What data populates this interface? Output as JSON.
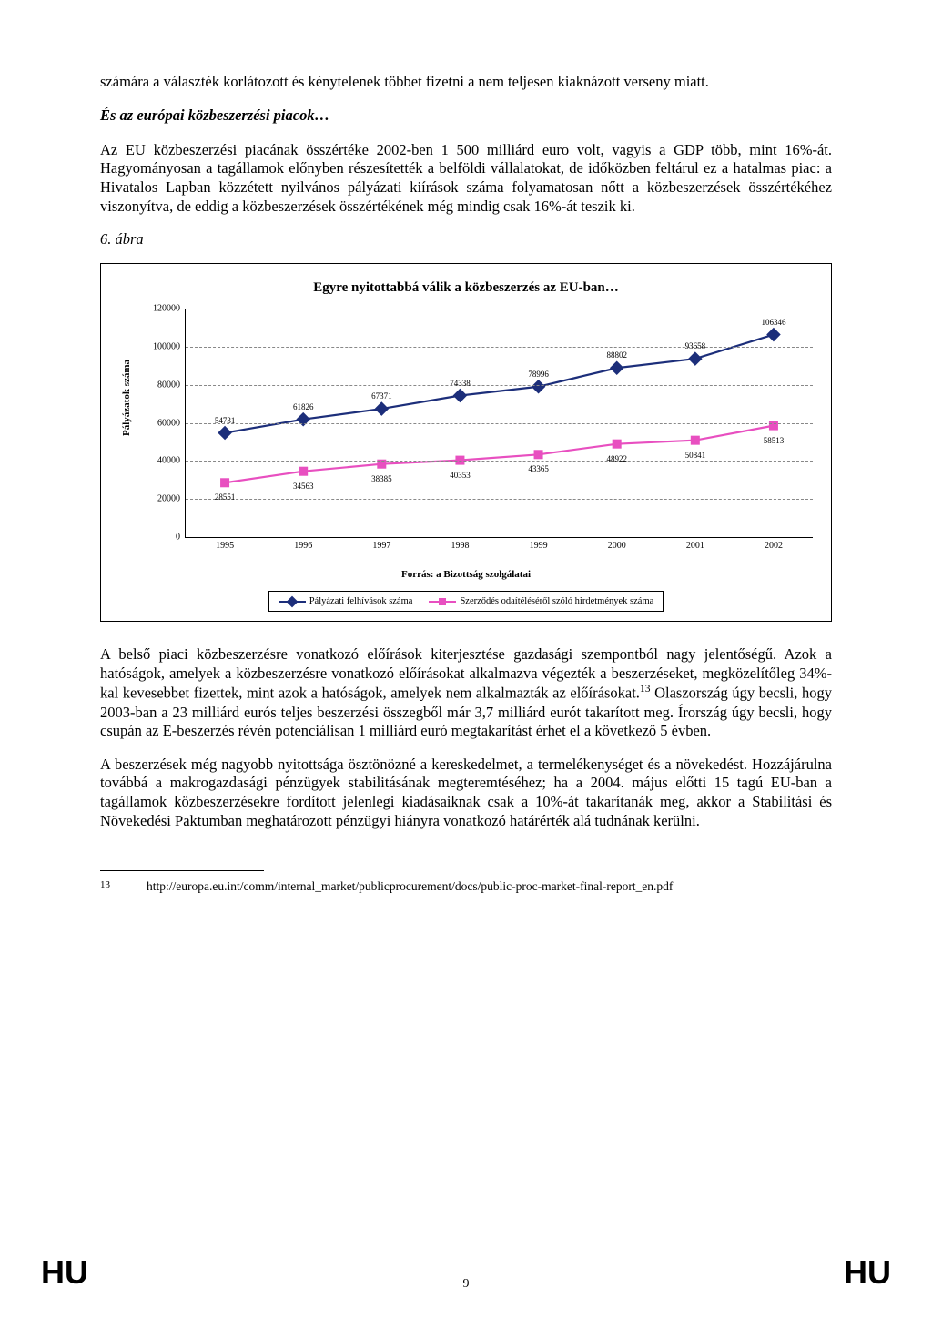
{
  "para1": "számára a választék korlátozott és kénytelenek többet fizetni a nem teljesen kiaknázott verseny miatt.",
  "heading1": "És az európai közbeszerzési piacok…",
  "para2": "Az EU közbeszerzési piacának összértéke 2002-ben 1 500 milliárd euro volt, vagyis a GDP több, mint 16%-át. Hagyományosan a tagállamok előnyben részesítették a belföldi vállalatokat, de időközben feltárul ez a hatalmas piac: a Hivatalos Lapban közzétett nyilvános pályázati kiírások száma folyamatosan nőtt a közbeszerzések összértékéhez viszonyítva, de eddig a közbeszerzések összértékének még mindig csak 16%-át teszik ki.",
  "figlabel": "6. ábra",
  "chart": {
    "title": "Egyre nyitottabbá válik a közbeszerzés az EU-ban…",
    "ylabel": "Pályázatok száma",
    "source": "Forrás: a Bizottság szolgálatai",
    "ylim": [
      0,
      120000
    ],
    "ytick_step": 20000,
    "categories": [
      "1995",
      "1996",
      "1997",
      "1998",
      "1999",
      "2000",
      "2001",
      "2002"
    ],
    "series1": {
      "name": "Pályázati felhívások száma",
      "color": "#1c2e7a",
      "marker": "diamond",
      "values": [
        54731,
        61826,
        67371,
        74338,
        78996,
        88802,
        93658,
        106346
      ]
    },
    "series2": {
      "name": "Szerződés odaítéléséről szóló hirdetmények száma",
      "color": "#e84fc0",
      "marker": "square",
      "values": [
        28551,
        34563,
        38385,
        40353,
        43365,
        48922,
        50841,
        58513
      ]
    }
  },
  "para3a": "A belső piaci közbeszerzésre vonatkozó előírások kiterjesztése gazdasági szempontból nagy jelentőségű. Azok a hatóságok, amelyek a közbeszerzésre vonatkozó előírásokat alkalmazva végezték a beszerzéseket, megközelítőleg 34%-kal kevesebbet fizettek, mint azok a hatóságok, amelyek nem alkalmazták az előírásokat.",
  "para3b": " Olaszország úgy becsli, hogy 2003-ban a 23 milliárd eurós teljes beszerzési összegből már 3,7 milliárd eurót takarított meg. Írország úgy becsli, hogy csupán az E-beszerzés révén potenciálisan 1 milliárd euró megtakarítást érhet el a következő 5 évben.",
  "para4": "A beszerzések még nagyobb nyitottsága ösztönözné a kereskedelmet, a termelékenységet és a növekedést. Hozzájárulna továbbá a makrogazdasági pénzügyek stabilitásának megteremtéséhez; ha a 2004. május előtti 15 tagú EU-ban a tagállamok közbeszerzésekre fordított jelenlegi kiadásaiknak csak a 10%-át takarítanák meg, akkor a Stabilitási és Növekedési Paktumban meghatározott pénzügyi hiányra vonatkozó határérték alá tudnának kerülni.",
  "footnote": {
    "num": "13",
    "text": "http://europa.eu.int/comm/internal_market/publicprocurement/docs/public-proc-market-final-report_en.pdf"
  },
  "footer": {
    "lang": "HU",
    "page": "9"
  }
}
